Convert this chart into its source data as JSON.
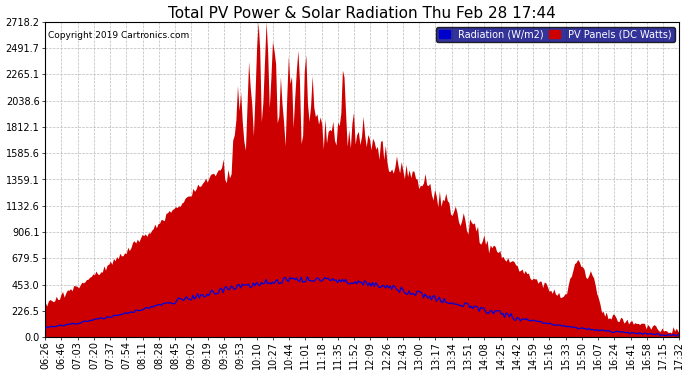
{
  "title": "Total PV Power & Solar Radiation Thu Feb 28 17:44",
  "copyright": "Copyright 2019 Cartronics.com",
  "legend_radiation": "Radiation (W/m2)",
  "legend_pv": "PV Panels (DC Watts)",
  "yticks": [
    0.0,
    226.5,
    453.0,
    679.5,
    906.1,
    1132.6,
    1359.1,
    1585.6,
    1812.1,
    2038.6,
    2265.1,
    2491.7,
    2718.2
  ],
  "xtick_labels": [
    "06:26",
    "06:46",
    "07:03",
    "07:20",
    "07:37",
    "07:54",
    "08:11",
    "08:28",
    "08:45",
    "09:02",
    "09:19",
    "09:36",
    "09:53",
    "10:10",
    "10:27",
    "10:44",
    "11:01",
    "11:18",
    "11:35",
    "11:52",
    "12:09",
    "12:26",
    "12:43",
    "13:00",
    "13:17",
    "13:34",
    "13:51",
    "14:08",
    "14:25",
    "14:42",
    "14:59",
    "15:16",
    "15:33",
    "15:50",
    "16:07",
    "16:24",
    "16:41",
    "16:58",
    "17:15",
    "17:32"
  ],
  "bg_color": "#ffffff",
  "grid_color": "#bbbbbb",
  "fill_color": "#cc0000",
  "line_color": "#0000dd",
  "title_fontsize": 11,
  "label_fontsize": 7,
  "legend_fontsize": 7
}
